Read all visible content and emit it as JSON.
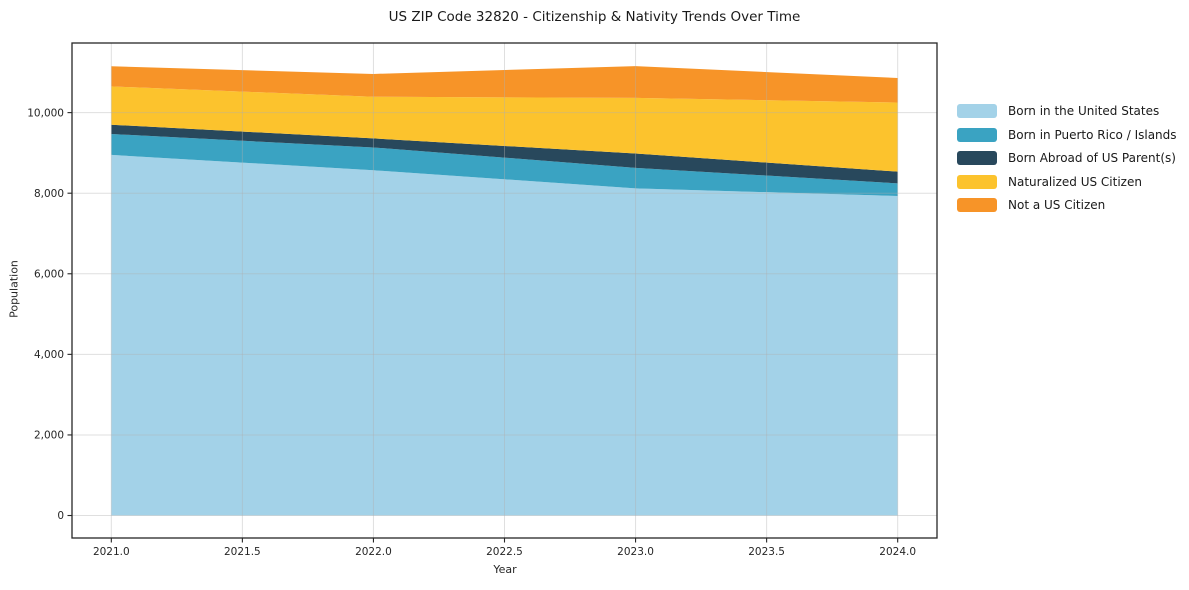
{
  "chart_data": {
    "type": "area",
    "stacked": true,
    "title": "US ZIP Code 32820 - Citizenship & Nativity Trends Over Time",
    "xlabel": "Year",
    "ylabel": "Population",
    "x": [
      2021,
      2022,
      2023,
      2024
    ],
    "series": [
      {
        "name": "Born in the United States",
        "color": "#a3d2e8",
        "values": [
          8950,
          8570,
          8120,
          7930
        ]
      },
      {
        "name": "Born in Puerto Rico / Islands",
        "color": "#3aa3c2",
        "values": [
          520,
          565,
          510,
          315
        ]
      },
      {
        "name": "Born Abroad of US Parent(s)",
        "color": "#28485c",
        "values": [
          230,
          225,
          355,
          290
        ]
      },
      {
        "name": "Naturalized US Citizen",
        "color": "#fcc32d",
        "values": [
          950,
          1035,
          1380,
          1715
        ]
      },
      {
        "name": "Not a US Citizen",
        "color": "#f79428",
        "values": [
          500,
          565,
          790,
          610
        ]
      }
    ],
    "stack_totals": [
      11150,
      10960,
      11155,
      10860
    ],
    "xlim": [
      2020.85,
      2024.15
    ],
    "ylim": [
      -558,
      11728
    ],
    "x_ticks": {
      "values": [
        2021,
        2021.5,
        2022,
        2022.5,
        2023,
        2023.5,
        2024
      ],
      "labels": [
        "2021.0",
        "2021.5",
        "2022.0",
        "2022.5",
        "2023.0",
        "2023.5",
        "2024.0"
      ]
    },
    "y_ticks": {
      "values": [
        0,
        2000,
        4000,
        6000,
        8000,
        10000
      ],
      "labels": [
        "0",
        "2,000",
        "4,000",
        "6,000",
        "8,000",
        "10,000"
      ]
    },
    "grid": true,
    "legend_position": "right-of-plot",
    "frame_color": "#262626",
    "grid_color": "#b0b0b0",
    "background": "#ffffff"
  }
}
